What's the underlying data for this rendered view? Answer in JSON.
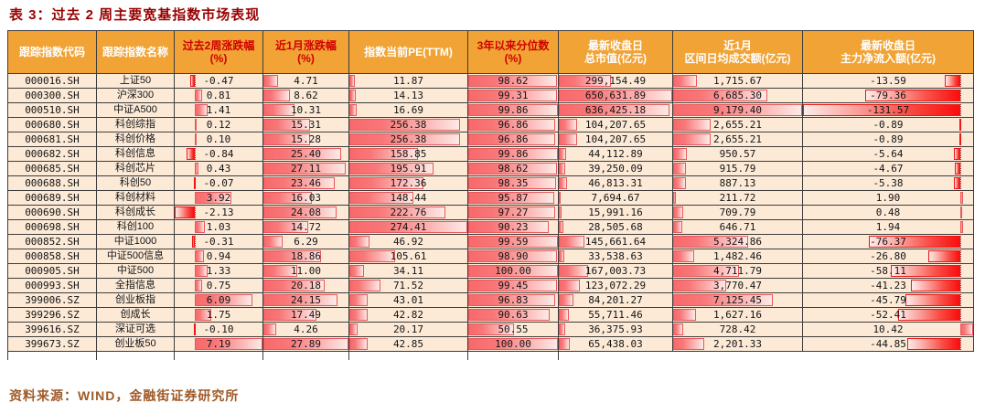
{
  "title": "表 3：过去 2 周主要宽基指数市场表现",
  "footer": "资料来源：WIND，金融街证券研究所",
  "colors": {
    "title_text": "#990000",
    "header_bg": "#F1A335",
    "header_text_white": "#ffffff",
    "header_text_red": "#d10000",
    "row_bg": "#FCEAD7",
    "grid_line": "#3d3d3d",
    "positive_bar": "#f8696b",
    "negative_bar": "#f90d0d",
    "footer_text": "#A05A28"
  },
  "table": {
    "headers": [
      {
        "id": "code",
        "lines": [
          "跟踪指数代码"
        ],
        "style": "white"
      },
      {
        "id": "name",
        "lines": [
          "跟踪指数名称"
        ],
        "style": "white"
      },
      {
        "id": "chg2w",
        "lines": [
          "过去2周涨跌幅",
          "(%)"
        ],
        "style": "red"
      },
      {
        "id": "chg1m",
        "lines": [
          "近1月涨跌幅",
          "(%)"
        ],
        "style": "red"
      },
      {
        "id": "pe",
        "lines": [
          "指数当前PE(TTM)"
        ],
        "style": "white"
      },
      {
        "id": "pct3y",
        "lines": [
          "3年以来分位数",
          "(%)"
        ],
        "style": "red"
      },
      {
        "id": "mktcap",
        "lines": [
          "最新收盘日",
          "总市值(亿元)"
        ],
        "style": "white"
      },
      {
        "id": "turnover",
        "lines": [
          "近1月",
          "区间日均成交额(亿元)"
        ],
        "style": "white"
      },
      {
        "id": "inflow",
        "lines": [
          "最新收盘日",
          "主力净流入额(亿元)"
        ],
        "style": "white"
      }
    ],
    "bar_columns": {
      "2": {
        "min": -2.13,
        "max": 7.19,
        "axis": true
      },
      "3": {
        "min": 0,
        "max": 27.89
      },
      "4": {
        "min": 0,
        "max": 274.41
      },
      "5": {
        "min": 0,
        "max": 100
      },
      "6": {
        "min": 0,
        "max": 650631.89
      },
      "7": {
        "min": 0,
        "max": 9179.4
      },
      "8": {
        "min": -131.57,
        "max": 10.42,
        "axis": true
      }
    },
    "rows": [
      [
        "000016.SH",
        "上证50",
        "-0.47",
        "4.71",
        "11.87",
        "98.62",
        "299,154.49",
        "1,715.67",
        "-13.59"
      ],
      [
        "000300.SH",
        "沪深300",
        "0.81",
        "8.62",
        "14.13",
        "99.31",
        "650,631.89",
        "6,685.30",
        "-79.36"
      ],
      [
        "000510.SH",
        "中证A500",
        "1.41",
        "10.31",
        "16.69",
        "99.86",
        "636,425.18",
        "9,179.40",
        "-131.57"
      ],
      [
        "000680.SH",
        "科创综指",
        "0.12",
        "15.31",
        "256.38",
        "96.86",
        "104,207.65",
        "2,655.21",
        "-0.89"
      ],
      [
        "000681.SH",
        "科创价格",
        "0.10",
        "15.28",
        "256.38",
        "96.86",
        "104,207.65",
        "2,655.21",
        "-0.89"
      ],
      [
        "000682.SH",
        "科创信息",
        "-0.84",
        "25.40",
        "158.85",
        "99.86",
        "44,112.89",
        "950.57",
        "-5.64"
      ],
      [
        "000685.SH",
        "科创芯片",
        "0.43",
        "27.11",
        "195.91",
        "98.62",
        "39,250.09",
        "915.79",
        "-4.67"
      ],
      [
        "000688.SH",
        "科创50",
        "-0.07",
        "23.46",
        "172.36",
        "98.35",
        "46,813.31",
        "887.13",
        "-5.38"
      ],
      [
        "000689.SH",
        "科创材料",
        "3.92",
        "16.03",
        "148.44",
        "95.87",
        "7,694.67",
        "211.72",
        "1.90"
      ],
      [
        "000690.SH",
        "科创成长",
        "-2.13",
        "24.08",
        "222.76",
        "97.27",
        "15,991.16",
        "709.79",
        "0.48"
      ],
      [
        "000698.SH",
        "科创100",
        "1.03",
        "14.72",
        "274.41",
        "90.23",
        "28,505.68",
        "646.71",
        "1.94"
      ],
      [
        "000852.SH",
        "中证1000",
        "-0.31",
        "6.29",
        "46.92",
        "99.59",
        "145,661.64",
        "5,324.86",
        "-76.37"
      ],
      [
        "000858.SH",
        "中证500信息",
        "0.94",
        "18.86",
        "105.61",
        "98.90",
        "33,538.63",
        "1,482.46",
        "-26.80"
      ],
      [
        "000905.SH",
        "中证500",
        "1.33",
        "11.00",
        "34.11",
        "100.00",
        "167,003.73",
        "4,711.79",
        "-58.11"
      ],
      [
        "000993.SH",
        "全指信息",
        "0.75",
        "20.18",
        "71.52",
        "99.45",
        "123,072.29",
        "3,770.47",
        "-41.23"
      ],
      [
        "399006.SZ",
        "创业板指",
        "6.09",
        "24.15",
        "43.01",
        "96.83",
        "84,201.27",
        "7,125.45",
        "-45.79"
      ],
      [
        "399296.SZ",
        "创成长",
        "1.75",
        "17.49",
        "42.82",
        "90.63",
        "55,711.46",
        "1,627.16",
        "-52.41"
      ],
      [
        "399616.SZ",
        "深证可选",
        "-0.10",
        "4.26",
        "20.17",
        "50.55",
        "36,375.93",
        "728.42",
        "10.42"
      ],
      [
        "399673.SZ",
        "创业板50",
        "7.19",
        "27.89",
        "42.85",
        "100.00",
        "65,438.03",
        "2,201.33",
        "-44.85"
      ]
    ],
    "stub_line_positions": [
      0,
      97,
      182,
      279,
      373,
      503,
      602
    ]
  }
}
